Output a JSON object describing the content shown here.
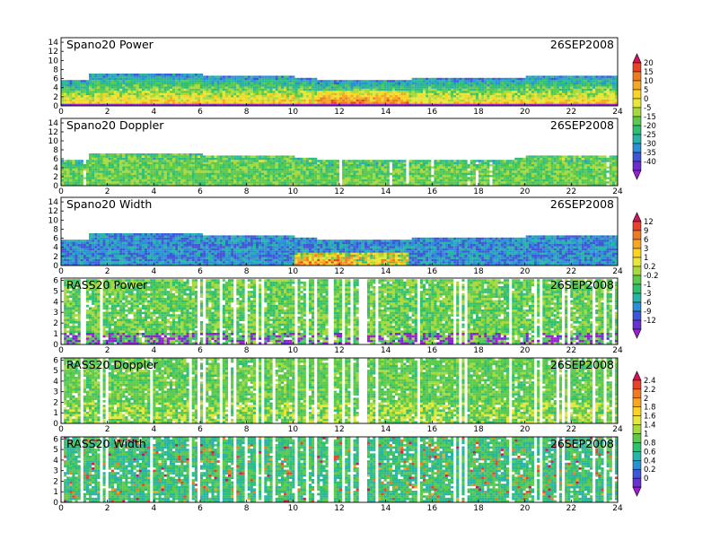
{
  "chart_data": [
    {
      "type": "heatmap",
      "title": "Spano20 Power",
      "date": "26SEP2008",
      "x_ticks": [
        0,
        2,
        4,
        6,
        8,
        10,
        12,
        14,
        16,
        18,
        20,
        22,
        24
      ],
      "y_ticks": [
        0,
        2,
        4,
        6,
        8,
        10,
        12,
        14
      ],
      "xlim": [
        0,
        24
      ],
      "ylim": [
        0,
        15
      ],
      "colorbar": "power",
      "data_top_profile": [
        [
          0,
          5.8
        ],
        [
          1.1,
          5.8
        ],
        [
          1.2,
          7.2
        ],
        [
          5.8,
          7.2
        ],
        [
          6,
          6.8
        ],
        [
          10,
          6.4
        ],
        [
          11,
          5.8
        ],
        [
          14.5,
          5.8
        ],
        [
          15,
          6.2
        ],
        [
          19.5,
          6.4
        ],
        [
          20,
          6.8
        ],
        [
          24,
          6.8
        ]
      ]
    },
    {
      "type": "heatmap",
      "title": "Spano20 Doppler",
      "date": "26SEP2008",
      "x_ticks": [
        0,
        2,
        4,
        6,
        8,
        10,
        12,
        14,
        16,
        18,
        20,
        22,
        24
      ],
      "y_ticks": [
        0,
        2,
        4,
        6,
        8,
        10,
        12,
        14
      ],
      "xlim": [
        0,
        24
      ],
      "ylim": [
        0,
        15
      ],
      "colorbar": "power",
      "data_top_profile": [
        [
          0,
          5.8
        ],
        [
          1.1,
          5.8
        ],
        [
          1.2,
          7.2
        ],
        [
          5.8,
          7.2
        ],
        [
          6,
          6.8
        ],
        [
          10,
          6.4
        ],
        [
          11,
          5.8
        ],
        [
          14.5,
          5.8
        ],
        [
          15,
          6.2
        ],
        [
          19.5,
          6.4
        ],
        [
          20,
          6.8
        ],
        [
          24,
          6.8
        ]
      ]
    },
    {
      "type": "heatmap",
      "title": "Spano20 Width",
      "date": "26SEP2008",
      "x_ticks": [
        0,
        2,
        4,
        6,
        8,
        10,
        12,
        14,
        16,
        18,
        20,
        22,
        24
      ],
      "y_ticks": [
        0,
        2,
        4,
        6,
        8,
        10,
        12,
        14
      ],
      "xlim": [
        0,
        24
      ],
      "ylim": [
        0,
        15
      ],
      "colorbar": "width",
      "data_top_profile": [
        [
          0,
          5.8
        ],
        [
          1.1,
          5.8
        ],
        [
          1.2,
          7.2
        ],
        [
          5.8,
          7.2
        ],
        [
          6,
          6.8
        ],
        [
          10,
          6.4
        ],
        [
          11,
          5.8
        ],
        [
          14.5,
          5.8
        ],
        [
          15,
          6.2
        ],
        [
          19.5,
          6.4
        ],
        [
          20,
          6.8
        ],
        [
          24,
          6.8
        ]
      ]
    },
    {
      "type": "heatmap",
      "title": "RASS20 Power",
      "date": "26SEP2008",
      "x_ticks": [
        0,
        2,
        4,
        6,
        8,
        10,
        12,
        14,
        16,
        18,
        20,
        22,
        24
      ],
      "y_ticks": [
        0,
        1,
        2,
        3,
        4,
        5,
        6
      ],
      "xlim": [
        0,
        24
      ],
      "ylim": [
        0,
        6.2
      ],
      "colorbar": "width",
      "data_top_profile": [
        [
          0,
          6.2
        ],
        [
          24,
          6.2
        ]
      ]
    },
    {
      "type": "heatmap",
      "title": "RASS20 Doppler",
      "date": "26SEP2008",
      "x_ticks": [
        0,
        2,
        4,
        6,
        8,
        10,
        12,
        14,
        16,
        18,
        20,
        22,
        24
      ],
      "y_ticks": [
        0,
        1,
        2,
        3,
        4,
        5,
        6
      ],
      "xlim": [
        0,
        24
      ],
      "ylim": [
        0,
        6.2
      ],
      "colorbar": "doppler",
      "data_top_profile": [
        [
          0,
          6.2
        ],
        [
          24,
          6.2
        ]
      ]
    },
    {
      "type": "heatmap",
      "title": "RASS20 Width",
      "date": "26SEP2008",
      "x_ticks": [
        0,
        2,
        4,
        6,
        8,
        10,
        12,
        14,
        16,
        18,
        20,
        22,
        24
      ],
      "y_ticks": [
        0,
        1,
        2,
        3,
        4,
        5,
        6
      ],
      "xlim": [
        0,
        24
      ],
      "ylim": [
        0,
        6.2
      ],
      "colorbar": "doppler",
      "data_top_profile": [
        [
          0,
          6.2
        ],
        [
          24,
          6.2
        ]
      ]
    }
  ],
  "colorbars": {
    "power": {
      "labels": [
        "20",
        "15",
        "10",
        "5",
        "0",
        "-5",
        "-15",
        "-20",
        "-25",
        "-30",
        "-35",
        "-40"
      ],
      "colors": [
        "#d4145a",
        "#e8432a",
        "#f07a22",
        "#f5a623",
        "#f9d423",
        "#e5e83a",
        "#a8d93c",
        "#5cc94a",
        "#2fbf71",
        "#27b3a7",
        "#2b8fd6",
        "#3f56d9",
        "#6a2fd1",
        "#9b1fd1"
      ]
    },
    "width": {
      "labels": [
        "12",
        "9",
        "6",
        "3",
        "1",
        "0.2",
        "-0.2",
        "-1",
        "-3",
        "-6",
        "-9",
        "-12"
      ],
      "colors": [
        "#d4145a",
        "#e8432a",
        "#f07a22",
        "#f5a623",
        "#f9d423",
        "#e5e83a",
        "#a8d93c",
        "#5cc94a",
        "#2fbf71",
        "#27b3a7",
        "#2b8fd6",
        "#3f56d9",
        "#6a2fd1",
        "#9b1fd1"
      ]
    },
    "doppler": {
      "labels": [
        "2.4",
        "2.2",
        "2",
        "1.8",
        "1.6",
        "1.4",
        "1",
        "0.8",
        "0.6",
        "0.4",
        "0.2",
        "0"
      ],
      "colors": [
        "#d4145a",
        "#e8432a",
        "#f07a22",
        "#f5a623",
        "#f9d423",
        "#e5e83a",
        "#a8d93c",
        "#5cc94a",
        "#2fbf71",
        "#27b3a7",
        "#2b8fd6",
        "#3f56d9",
        "#6a2fd1",
        "#9b1fd1"
      ]
    }
  }
}
